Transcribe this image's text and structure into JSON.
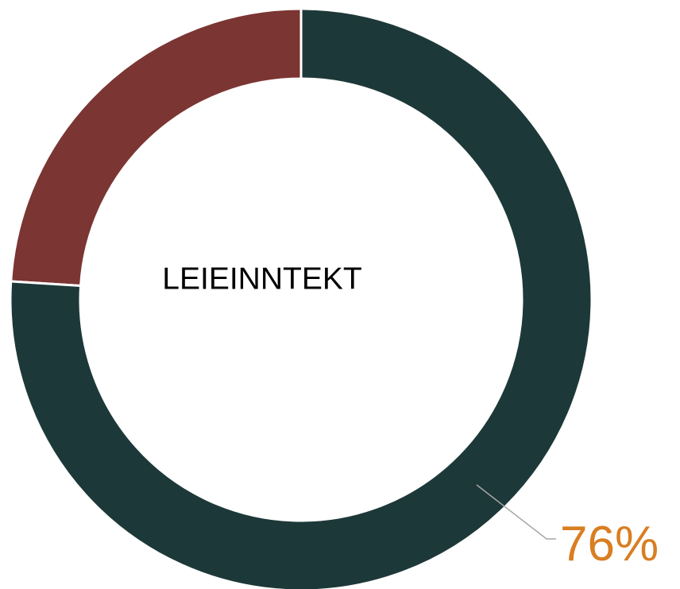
{
  "chart_data": {
    "type": "donut",
    "title": "LEIEINNTEKT",
    "values": [
      76,
      24
    ],
    "value_labels": [
      "76%",
      null
    ],
    "colors": [
      "#1d3838",
      "#7b3532"
    ],
    "label_color": "#d97e22"
  }
}
